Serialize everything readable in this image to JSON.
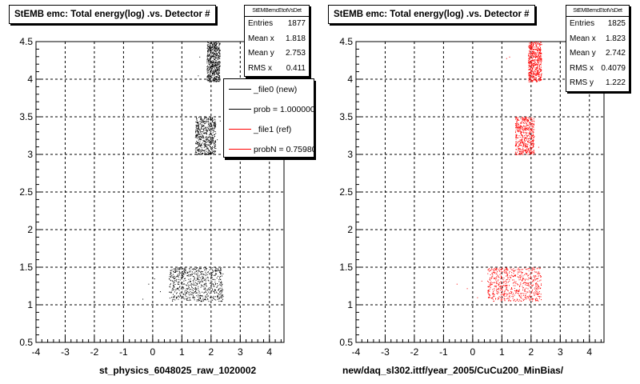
{
  "colors": {
    "file0": "#000000",
    "file1": "#ff0000"
  },
  "chart_data": [
    {
      "type": "scatter",
      "title": "StEMB emc: Total energy(log) .vs. Detector #",
      "xlabel": "st_physics_6048025_raw_1020002",
      "ylabel": "",
      "xlim": [
        -4,
        4.5
      ],
      "ylim": [
        0.5,
        4.5
      ],
      "grid": true,
      "xticks": [
        "-4",
        "-3",
        "-2",
        "-1",
        "0",
        "1",
        "2",
        "3",
        "4"
      ],
      "yticks": [
        "0.5",
        "1",
        "1.5",
        "2",
        "2.5",
        "3",
        "3.5",
        "4",
        "4.5"
      ],
      "stats": {
        "name": "StEMBemcEtotVsDet",
        "rows": [
          {
            "label": "Entries",
            "value": "1877"
          },
          {
            "label": "Mean x",
            "value": "1.818"
          },
          {
            "label": "Mean y",
            "value": "2.753"
          },
          {
            "label": "RMS x",
            "value": "0.411"
          }
        ]
      },
      "legend": {
        "placement": "top-right",
        "entries": [
          {
            "label": "_file0 (new)",
            "color": "#000000"
          },
          {
            "label": "prob = 1.000000",
            "color": "#000000"
          },
          {
            "label": "_file1 (ref)",
            "color": "#ff0000"
          },
          {
            "label": "probN = 0.759800",
            "color": "#ff0000"
          }
        ]
      },
      "series": [
        {
          "color": "#000000",
          "clusters": [
            {
              "x": [
                1.85,
                2.3
              ],
              "y": [
                3.97,
                4.5
              ],
              "n": 560
            },
            {
              "x": [
                1.45,
                2.15
              ],
              "y": [
                3.0,
                3.5
              ],
              "n": 520
            },
            {
              "x": [
                0.55,
                2.4
              ],
              "y": [
                1.05,
                1.5
              ],
              "n": 640
            }
          ],
          "points": [
            [
              1.6,
              4.3
            ],
            [
              1.55,
              4.05
            ],
            [
              -0.15,
              1.28
            ],
            [
              -0.35,
              1.08
            ],
            [
              0.25,
              1.18
            ],
            [
              0.05,
              1.35
            ],
            [
              2.3,
              3.45
            ],
            [
              2.2,
              3.2
            ]
          ]
        }
      ]
    },
    {
      "type": "scatter",
      "title": "StEMB emc: Total energy(log) .vs. Detector #",
      "xlabel": "new/daq_sl302.ittf/year_2005/CuCu200_MinBias/",
      "ylabel": "",
      "xlim": [
        -4,
        4.5
      ],
      "ylim": [
        0.5,
        4.5
      ],
      "grid": true,
      "xticks": [
        "-4",
        "-3",
        "-2",
        "-1",
        "0",
        "1",
        "2",
        "3",
        "4"
      ],
      "yticks": [
        "0.5",
        "1",
        "1.5",
        "2",
        "2.5",
        "3",
        "3.5",
        "4",
        "4.5"
      ],
      "stats": {
        "name": "StEMBemcEtotVsDet",
        "rows": [
          {
            "label": "Entries",
            "value": "1825"
          },
          {
            "label": "Mean x",
            "value": "1.823"
          },
          {
            "label": "Mean y",
            "value": "2.742"
          },
          {
            "label": "RMS x",
            "value": "0.4079"
          },
          {
            "label": "RMS y",
            "value": "1.222"
          }
        ]
      },
      "series": [
        {
          "color": "#ff0000",
          "clusters": [
            {
              "x": [
                1.9,
                2.35
              ],
              "y": [
                3.97,
                4.5
              ],
              "n": 540
            },
            {
              "x": [
                1.45,
                2.1
              ],
              "y": [
                3.0,
                3.5
              ],
              "n": 500
            },
            {
              "x": [
                0.5,
                2.35
              ],
              "y": [
                1.05,
                1.5
              ],
              "n": 620
            }
          ],
          "points": [
            [
              1.15,
              4.28
            ],
            [
              1.25,
              4.3
            ],
            [
              -0.55,
              1.28
            ],
            [
              -0.2,
              1.22
            ],
            [
              0.15,
              1.1
            ],
            [
              0.3,
              1.32
            ],
            [
              2.25,
              3.1
            ]
          ]
        }
      ]
    }
  ]
}
